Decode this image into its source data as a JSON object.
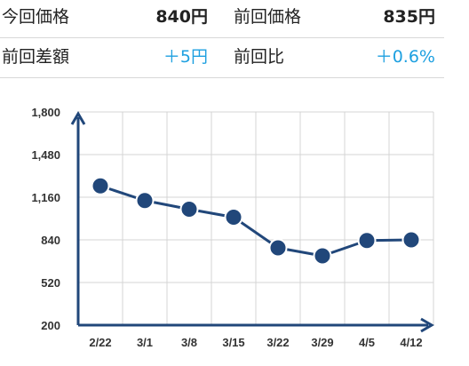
{
  "stats": {
    "current_price_label": "今回価格",
    "current_price_value": "840円",
    "previous_price_label": "前回価格",
    "previous_price_value": "835円",
    "diff_label": "前回差額",
    "diff_value": "＋5円",
    "ratio_label": "前回比",
    "ratio_value": "＋0.6%"
  },
  "colors": {
    "line": "#21477a",
    "accent": "#1ea0e0",
    "grid": "#d4d4d4"
  },
  "chart_data": {
    "type": "line",
    "categories": [
      "2/22",
      "3/1",
      "3/8",
      "3/15",
      "3/22",
      "3/29",
      "4/5",
      "4/12"
    ],
    "values": [
      1245,
      1135,
      1070,
      1010,
      780,
      720,
      835,
      840
    ],
    "ylim": [
      200,
      1800
    ],
    "yticks": [
      "1,800",
      "1,480",
      "1,160",
      "840",
      "520",
      "200"
    ],
    "ytick_values": [
      1800,
      1480,
      1160,
      840,
      520,
      200
    ],
    "grid": true
  }
}
